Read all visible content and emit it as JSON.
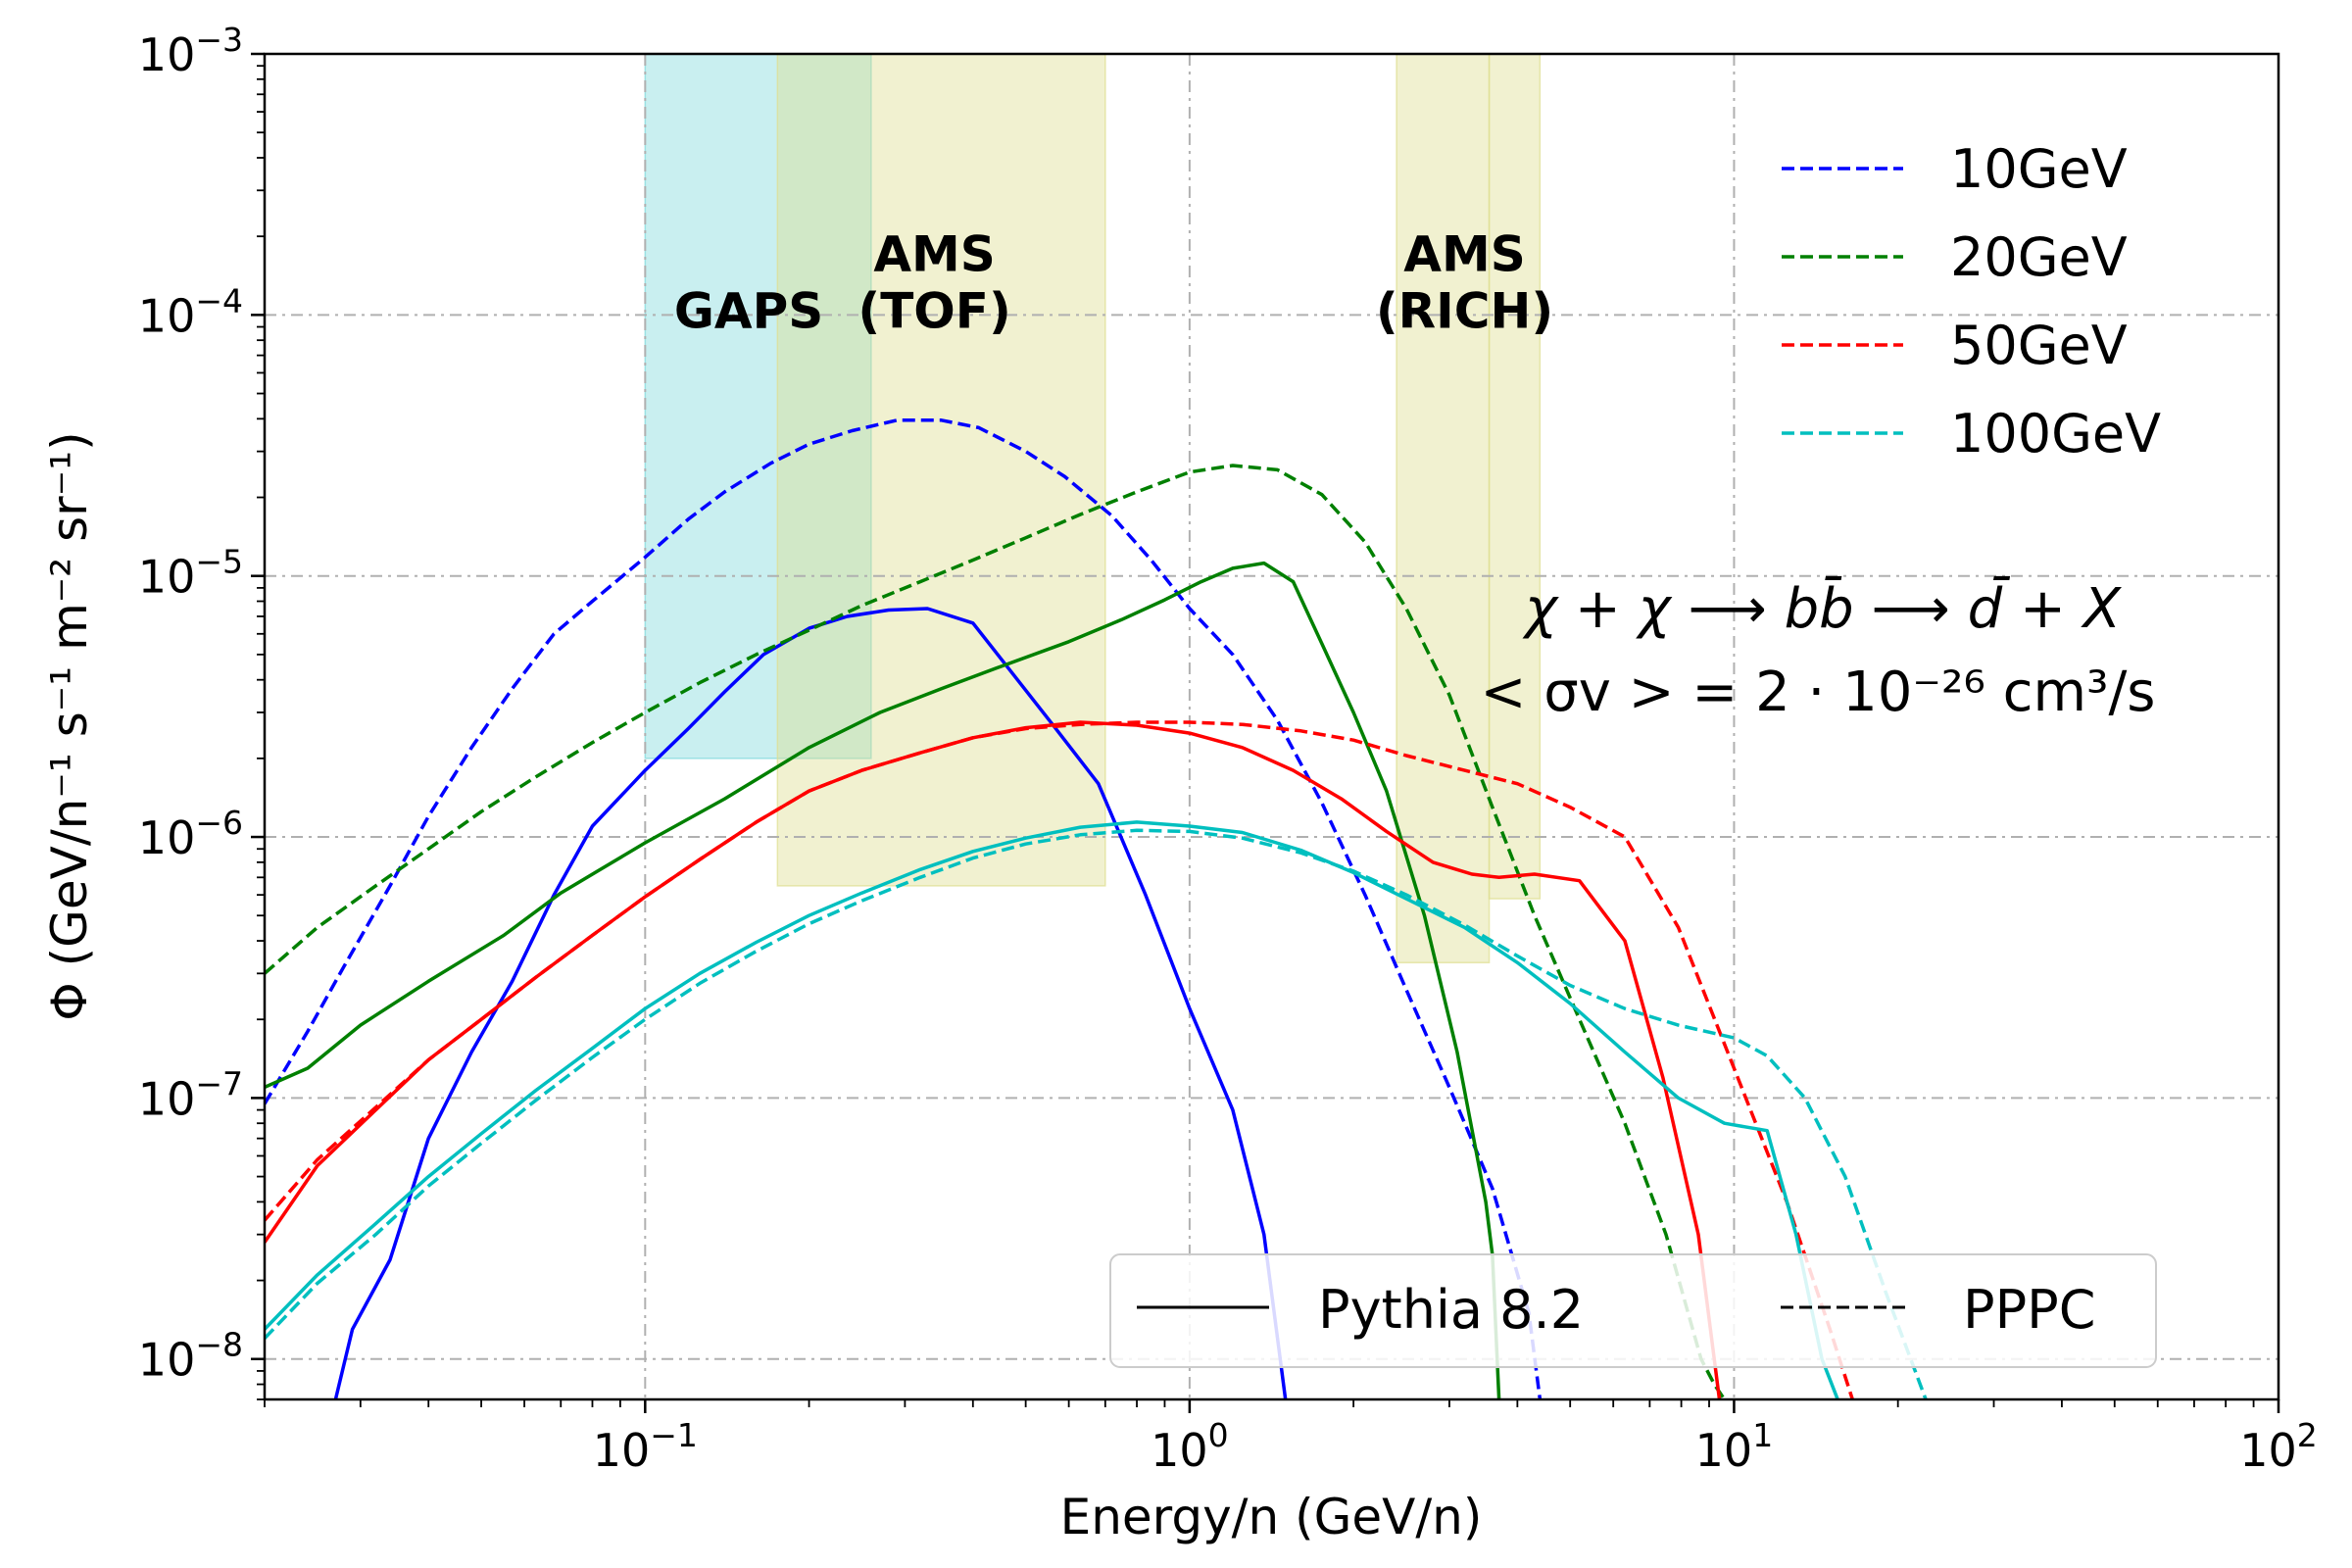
{
  "chart_data": {
    "type": "line",
    "xlabel": "Energy/n (GeV/n)",
    "ylabel": "Φ (GeV/n⁻¹ s⁻¹ m⁻² sr⁻¹)",
    "xscale": "log",
    "yscale": "log",
    "xlim": [
      0.02,
      100
    ],
    "ylim": [
      7e-09,
      0.001
    ],
    "x_ticks": [
      {
        "value": 0.1,
        "base": "10",
        "exp": "−1"
      },
      {
        "value": 1,
        "base": "10",
        "exp": "0"
      },
      {
        "value": 10,
        "base": "10",
        "exp": "1"
      },
      {
        "value": 100,
        "base": "10",
        "exp": "2"
      }
    ],
    "y_ticks": [
      {
        "value": 1e-08,
        "base": "10",
        "exp": "−8"
      },
      {
        "value": 1e-07,
        "base": "10",
        "exp": "−7"
      },
      {
        "value": 1e-06,
        "base": "10",
        "exp": "−6"
      },
      {
        "value": 1e-05,
        "base": "10",
        "exp": "−5"
      },
      {
        "value": 0.0001,
        "base": "10",
        "exp": "−4"
      },
      {
        "value": 0.001,
        "base": "10",
        "exp": "−3"
      }
    ],
    "grid": true,
    "legend_placement": "top-right",
    "style_legend_placement": "lower-right",
    "bands": [
      {
        "label_lines": [
          "GAPS"
        ],
        "x": [
          0.1,
          0.26
        ],
        "y": [
          2e-06,
          0.001
        ],
        "color": "#7fd8dc",
        "label_at": [
          0.155,
          0.00012
        ]
      },
      {
        "label_lines": [
          "AMS",
          "(TOF)"
        ],
        "x": [
          0.175,
          0.7
        ],
        "y": [
          6.5e-07,
          0.001
        ],
        "color": "#dede90",
        "label_at": [
          0.34,
          0.00012
        ]
      },
      {
        "label_lines": [
          "AMS",
          "(RICH)"
        ],
        "x": [
          2.4,
          3.55
        ],
        "y": [
          3.3e-07,
          0.001
        ],
        "color": "#dede90",
        "label_at": [
          3.2,
          0.00012
        ]
      },
      {
        "label_lines": [],
        "x": [
          3.55,
          4.4
        ],
        "y": [
          5.8e-07,
          0.001
        ],
        "color": "#dede90",
        "label_at": null
      }
    ],
    "series": [
      {
        "name": "10GeV",
        "color": "#0000ff",
        "style": "solid",
        "x": [
          0.027,
          0.029,
          0.034,
          0.04,
          0.048,
          0.057,
          0.068,
          0.08,
          0.1,
          0.12,
          0.14,
          0.165,
          0.2,
          0.235,
          0.28,
          0.33,
          0.4,
          0.47,
          0.56,
          0.68,
          0.83,
          1.0,
          1.2,
          1.37,
          1.5
        ],
        "y": [
          7e-09,
          1.3e-08,
          2.4e-08,
          7e-08,
          1.5e-07,
          2.8e-07,
          6e-07,
          1.1e-06,
          1.8e-06,
          2.6e-06,
          3.6e-06,
          5e-06,
          6.3e-06,
          7e-06,
          7.4e-06,
          7.5e-06,
          6.6e-06,
          4.3e-06,
          2.7e-06,
          1.6e-06,
          6e-07,
          2.2e-07,
          9e-08,
          3e-08,
          7e-09
        ]
      },
      {
        "name": "10GeV",
        "color": "#0000ff",
        "style": "dashed",
        "x": [
          0.02,
          0.024,
          0.028,
          0.034,
          0.04,
          0.048,
          0.057,
          0.068,
          0.08,
          0.1,
          0.12,
          0.14,
          0.17,
          0.2,
          0.24,
          0.29,
          0.35,
          0.41,
          0.5,
          0.59,
          0.72,
          0.85,
          1.0,
          1.2,
          1.45,
          1.75,
          2.1,
          2.5,
          3.0,
          3.6,
          4.2,
          4.4
        ],
        "y": [
          9.5e-08,
          1.8e-07,
          3.2e-07,
          6.5e-07,
          1.2e-06,
          2.2e-06,
          3.7e-06,
          6e-06,
          8e-06,
          1.18e-05,
          1.65e-05,
          2.1e-05,
          2.7e-05,
          3.2e-05,
          3.6e-05,
          3.95e-05,
          3.95e-05,
          3.7e-05,
          3e-05,
          2.4e-05,
          1.7e-05,
          1.15e-05,
          7.5e-06,
          5e-06,
          2.8e-06,
          1.35e-06,
          6e-07,
          2.6e-07,
          1.1e-07,
          4.5e-08,
          1.5e-08,
          7e-09
        ]
      },
      {
        "name": "20GeV",
        "color": "#008000",
        "style": "solid",
        "x": [
          0.02,
          0.024,
          0.03,
          0.04,
          0.055,
          0.07,
          0.1,
          0.14,
          0.2,
          0.27,
          0.35,
          0.45,
          0.6,
          0.75,
          0.9,
          1.05,
          1.2,
          1.37,
          1.55,
          1.75,
          2.0,
          2.3,
          2.7,
          3.1,
          3.5,
          3.6,
          3.7
        ],
        "y": [
          1.1e-07,
          1.3e-07,
          1.9e-07,
          2.8e-07,
          4.2e-07,
          6.1e-07,
          9.5e-07,
          1.4e-06,
          2.2e-06,
          3e-06,
          3.7e-06,
          4.5e-06,
          5.6e-06,
          6.8e-06,
          8.1e-06,
          9.5e-06,
          1.07e-05,
          1.12e-05,
          9.5e-06,
          5.5e-06,
          3e-06,
          1.5e-06,
          5e-07,
          1.5e-07,
          4e-08,
          2.5e-08,
          7e-09
        ]
      },
      {
        "name": "20GeV",
        "color": "#008000",
        "style": "dashed",
        "x": [
          0.02,
          0.025,
          0.032,
          0.04,
          0.05,
          0.063,
          0.08,
          0.1,
          0.126,
          0.16,
          0.2,
          0.25,
          0.32,
          0.4,
          0.5,
          0.63,
          0.8,
          1.0,
          1.2,
          1.45,
          1.75,
          2.1,
          2.5,
          3.0,
          3.6,
          4.3,
          5.2,
          6.3,
          7.5,
          8.7,
          9.2,
          9.6
        ],
        "y": [
          3e-07,
          4.5e-07,
          6.5e-07,
          9e-07,
          1.25e-06,
          1.7e-06,
          2.3e-06,
          3e-06,
          3.9e-06,
          5e-06,
          6.2e-06,
          7.7e-06,
          9.5e-06,
          1.15e-05,
          1.4e-05,
          1.72e-05,
          2.1e-05,
          2.5e-05,
          2.65e-05,
          2.55e-05,
          2.05e-05,
          1.35e-05,
          7.5e-06,
          3.5e-06,
          1.3e-06,
          5e-07,
          2e-07,
          8e-08,
          3e-08,
          1e-08,
          8e-09,
          7e-09
        ]
      },
      {
        "name": "50GeV",
        "color": "#ff0000",
        "style": "solid",
        "x": [
          0.02,
          0.025,
          0.032,
          0.04,
          0.05,
          0.063,
          0.08,
          0.1,
          0.126,
          0.16,
          0.2,
          0.25,
          0.32,
          0.4,
          0.5,
          0.63,
          0.8,
          1.0,
          1.25,
          1.55,
          1.9,
          2.3,
          2.8,
          3.3,
          3.7,
          4.3,
          5.2,
          6.3,
          7.4,
          8.6,
          9.4
        ],
        "y": [
          2.8e-08,
          5.5e-08,
          9e-08,
          1.4e-07,
          2e-07,
          2.9e-07,
          4.2e-07,
          5.9e-07,
          8.2e-07,
          1.14e-06,
          1.5e-06,
          1.8e-06,
          2.1e-06,
          2.4e-06,
          2.62e-06,
          2.75e-06,
          2.68e-06,
          2.5e-06,
          2.2e-06,
          1.8e-06,
          1.4e-06,
          1.05e-06,
          8e-07,
          7.2e-07,
          7e-07,
          7.2e-07,
          6.8e-07,
          4e-07,
          1.2e-07,
          3e-08,
          7e-09
        ]
      },
      {
        "name": "50GeV",
        "color": "#ff0000",
        "style": "dashed",
        "x": [
          0.02,
          0.025,
          0.032,
          0.04,
          0.05,
          0.063,
          0.08,
          0.1,
          0.126,
          0.16,
          0.2,
          0.25,
          0.32,
          0.4,
          0.5,
          0.63,
          0.8,
          1.0,
          1.25,
          1.6,
          2.0,
          2.5,
          3.2,
          4.0,
          5.0,
          6.3,
          7.9,
          10,
          12.5,
          15,
          16.5
        ],
        "y": [
          3.4e-08,
          5.8e-08,
          9.2e-08,
          1.4e-07,
          2e-07,
          2.9e-07,
          4.2e-07,
          5.9e-07,
          8.2e-07,
          1.14e-06,
          1.5e-06,
          1.8e-06,
          2.1e-06,
          2.4e-06,
          2.6e-06,
          2.7e-06,
          2.75e-06,
          2.75e-06,
          2.7e-06,
          2.55e-06,
          2.35e-06,
          2.05e-06,
          1.8e-06,
          1.6e-06,
          1.3e-06,
          1e-06,
          4.5e-07,
          1.3e-07,
          4e-08,
          1.3e-08,
          7e-09
        ]
      },
      {
        "name": "100GeV",
        "color": "#00bfbf",
        "style": "solid",
        "x": [
          0.02,
          0.025,
          0.032,
          0.04,
          0.05,
          0.063,
          0.08,
          0.1,
          0.126,
          0.16,
          0.2,
          0.25,
          0.32,
          0.4,
          0.5,
          0.63,
          0.8,
          1.0,
          1.25,
          1.6,
          2.0,
          2.5,
          3.2,
          4.0,
          5.0,
          6.3,
          7.9,
          9.6,
          11.5,
          13,
          14.5,
          15.5
        ],
        "y": [
          1.3e-08,
          2.1e-08,
          3.3e-08,
          5e-08,
          7.3e-08,
          1.07e-07,
          1.55e-07,
          2.2e-07,
          3e-07,
          3.95e-07,
          5e-07,
          6.1e-07,
          7.5e-07,
          8.8e-07,
          9.9e-07,
          1.09e-06,
          1.14e-06,
          1.1e-06,
          1.04e-06,
          8.9e-07,
          7.3e-07,
          5.8e-07,
          4.5e-07,
          3.3e-07,
          2.3e-07,
          1.5e-07,
          1e-07,
          8e-08,
          7.5e-08,
          3e-08,
          1e-08,
          7e-09
        ]
      },
      {
        "name": "100GeV",
        "color": "#00bfbf",
        "style": "dashed",
        "x": [
          0.02,
          0.025,
          0.032,
          0.04,
          0.05,
          0.063,
          0.08,
          0.1,
          0.126,
          0.16,
          0.2,
          0.25,
          0.32,
          0.4,
          0.5,
          0.63,
          0.8,
          1.0,
          1.25,
          1.6,
          2.0,
          2.5,
          3.2,
          4.0,
          5.0,
          6.3,
          7.9,
          10,
          11.5,
          13.5,
          16,
          19,
          22.5
        ],
        "y": [
          1.2e-08,
          1.95e-08,
          3e-08,
          4.6e-08,
          6.7e-08,
          9.8e-08,
          1.43e-07,
          2e-07,
          2.75e-07,
          3.65e-07,
          4.65e-07,
          5.7e-07,
          7e-07,
          8.3e-07,
          9.4e-07,
          1.02e-06,
          1.06e-06,
          1.05e-06,
          9.9e-07,
          8.7e-07,
          7.4e-07,
          6e-07,
          4.6e-07,
          3.5e-07,
          2.7e-07,
          2.2e-07,
          1.9e-07,
          1.7e-07,
          1.45e-07,
          1e-07,
          5e-08,
          1.8e-08,
          7e-09
        ]
      }
    ],
    "legend": [
      {
        "label": "10GeV",
        "color": "#0000ff"
      },
      {
        "label": "20GeV",
        "color": "#008000"
      },
      {
        "label": "50GeV",
        "color": "#ff0000"
      },
      {
        "label": "100GeV",
        "color": "#00bfbf"
      }
    ],
    "style_legend": [
      {
        "label": "Pythia 8.2",
        "style": "solid"
      },
      {
        "label": "PPPC",
        "style": "dashed"
      }
    ],
    "annotations": {
      "reaction": "χ + χ ⟶ bb̄ ⟶ d̄ + X",
      "cross_section": "< σv > = 2 · 10⁻²⁶ cm³/s"
    }
  }
}
